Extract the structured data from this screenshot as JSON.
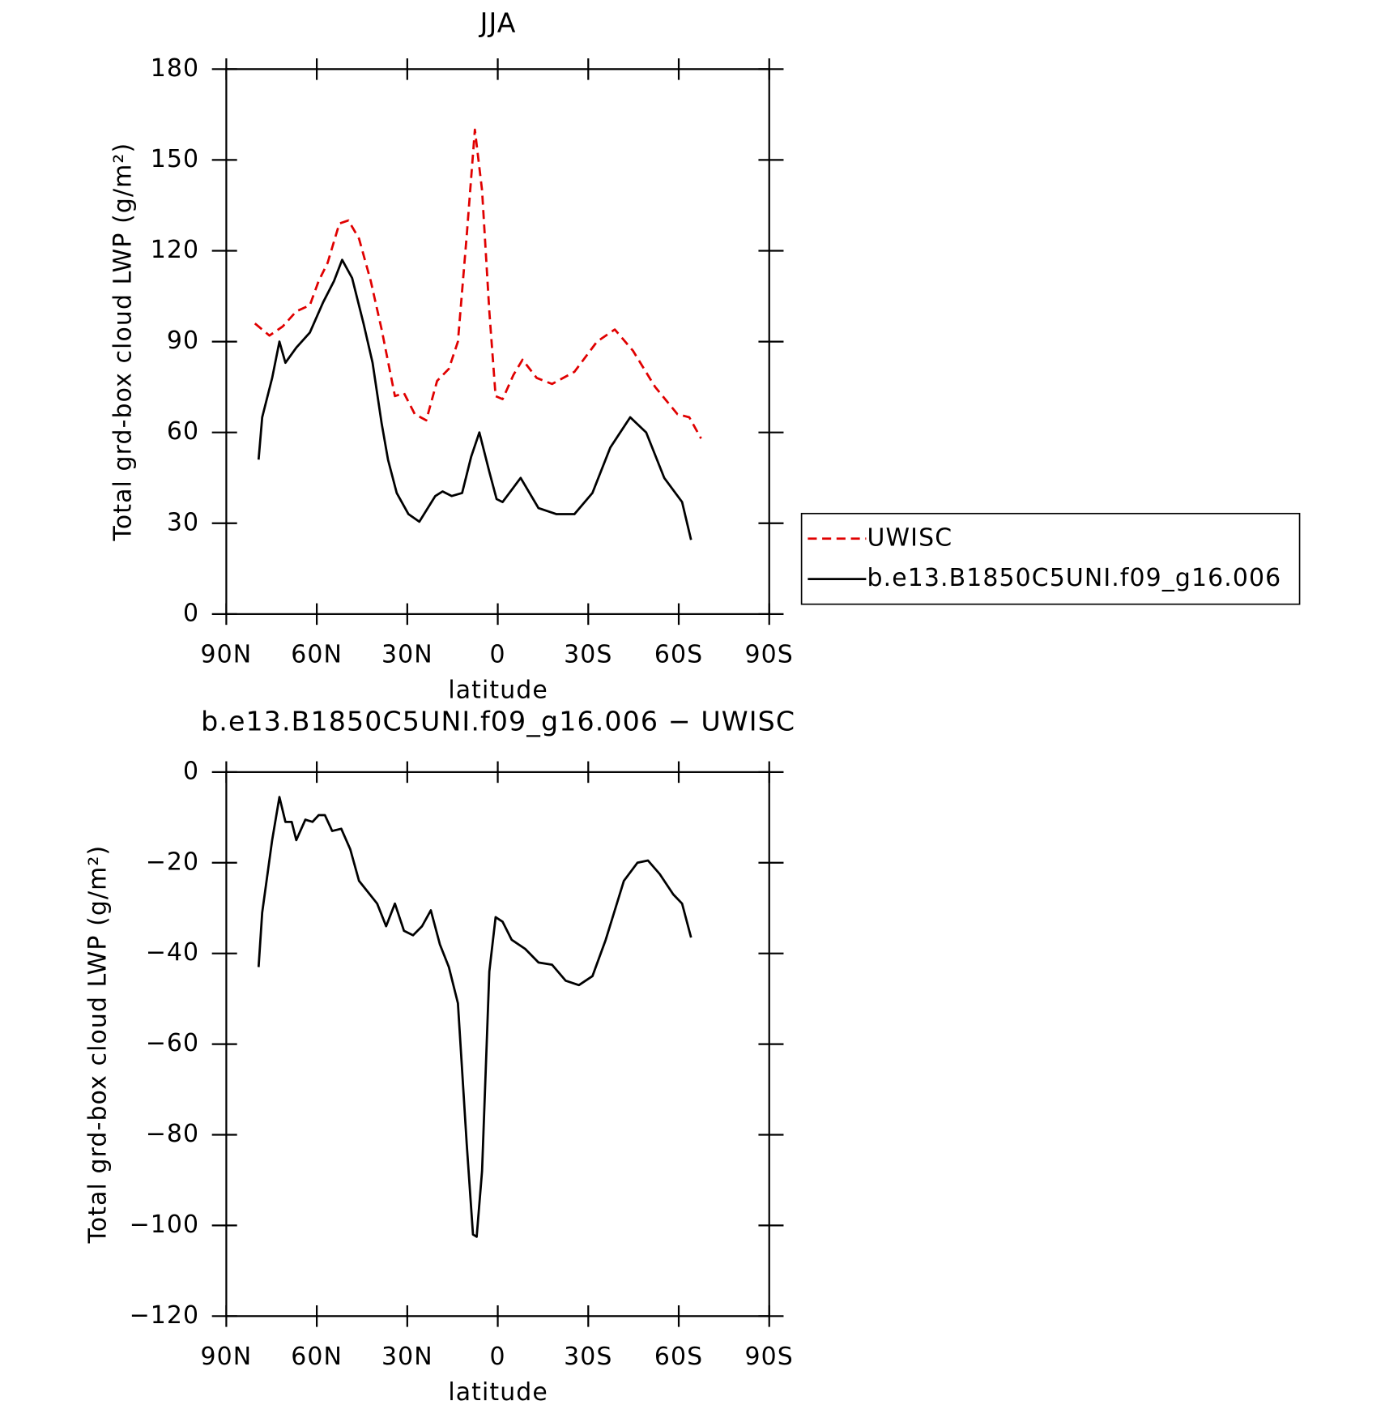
{
  "chart_data": [
    {
      "type": "line",
      "title": "JJA",
      "xlabel": "latitude",
      "ylabel": "Total grd-box cloud LWP (g/m²)",
      "xlim": [
        90,
        -90
      ],
      "ylim": [
        0,
        180
      ],
      "xticks": [
        {
          "value": 90,
          "label": "90N"
        },
        {
          "value": 60,
          "label": "60N"
        },
        {
          "value": 30,
          "label": "30N"
        },
        0,
        {
          "value": -30,
          "label": "30S"
        },
        {
          "value": -60,
          "label": "60S"
        },
        {
          "value": -90,
          "label": "90S"
        }
      ],
      "yticks": [
        0,
        30,
        60,
        90,
        120,
        150,
        180
      ],
      "legend": "right",
      "series": [
        {
          "name": "UWISC",
          "color": "#e00000",
          "dash": true,
          "x": [
            80.5,
            75.7,
            71.3,
            66.8,
            62.3,
            59.4,
            56.4,
            52.5,
            49.5,
            46.0,
            42.1,
            38.5,
            34.1,
            31.1,
            27.5,
            23.7,
            20.1,
            16.2,
            13.2,
            10.3,
            7.6,
            5.2,
            2.8,
            0.7,
            -1.6,
            -5.2,
            -8.2,
            -12.9,
            -18.0,
            -25.4,
            -32.9,
            -38.8,
            -44.8,
            -52.2,
            -59.6,
            -63.5,
            -67.4
          ],
          "values": [
            96,
            92,
            95,
            100,
            102,
            110,
            116,
            129,
            130,
            124,
            110,
            94,
            72,
            73,
            66,
            64,
            77,
            81,
            90,
            125,
            160,
            140,
            100,
            72,
            71,
            79,
            84,
            78,
            76,
            80,
            90,
            94,
            87,
            75,
            66,
            65,
            58
          ]
        },
        {
          "name": "b.e13.B1850C5UNI.f09_g16.006",
          "color": "#000000",
          "dash": false,
          "x": [
            79.3,
            78.1,
            74.8,
            72.4,
            70.4,
            66.8,
            62.3,
            57.9,
            54.3,
            51.6,
            48.3,
            44.5,
            41.5,
            38.5,
            36.4,
            33.5,
            29.6,
            26.0,
            20.7,
            18.3,
            15.3,
            11.8,
            8.8,
            6.1,
            2.8,
            0.4,
            -1.6,
            -7.6,
            -13.5,
            -19.5,
            -25.4,
            -31.4,
            -37.3,
            -43.9,
            -49.2,
            -55.2,
            -61.1,
            -64.1
          ],
          "values": [
            51,
            65,
            78,
            90,
            83,
            88,
            93,
            103,
            110,
            117,
            111,
            96,
            83,
            63,
            51,
            40,
            33,
            30.5,
            39,
            40.5,
            39,
            40,
            52,
            60,
            47,
            38,
            37,
            45,
            35,
            33,
            33,
            40,
            55,
            65,
            60,
            45,
            37,
            24.5
          ]
        }
      ]
    },
    {
      "type": "line",
      "title": "b.e13.B1850C5UNI.f09_g16.006 − UWISC",
      "xlabel": "latitude",
      "ylabel": "Total grd-box cloud LWP (g/m²)",
      "xlim": [
        90,
        -90
      ],
      "ylim": [
        -120,
        0
      ],
      "xticks": [
        {
          "value": 90,
          "label": "90N"
        },
        {
          "value": 60,
          "label": "60N"
        },
        {
          "value": 30,
          "label": "30N"
        },
        0,
        {
          "value": -30,
          "label": "30S"
        },
        {
          "value": -60,
          "label": "60S"
        },
        {
          "value": -90,
          "label": "90S"
        }
      ],
      "yticks": [
        {
          "value": -120,
          "label": "−120"
        },
        {
          "value": -100,
          "label": "−100"
        },
        {
          "value": -80,
          "label": "−80"
        },
        {
          "value": -60,
          "label": "−60"
        },
        {
          "value": -40,
          "label": "−40"
        },
        {
          "value": -20,
          "label": "−20"
        },
        0
      ],
      "series": [
        {
          "color": "#000000",
          "dash": false,
          "x": [
            79.3,
            78.1,
            74.8,
            72.4,
            70.4,
            68.3,
            66.8,
            63.8,
            61.4,
            59.4,
            57.3,
            54.9,
            51.9,
            48.9,
            46.0,
            43.0,
            40.0,
            37.0,
            34.1,
            31.1,
            28.1,
            25.1,
            22.2,
            19.2,
            16.2,
            13.2,
            10.3,
            8.2,
            7.0,
            5.2,
            2.8,
            0.7,
            -1.6,
            -4.6,
            -9.1,
            -13.5,
            -18.0,
            -22.5,
            -26.9,
            -31.4,
            -35.8,
            -41.8,
            -46.3,
            -49.8,
            -53.7,
            -58.2,
            -61.1,
            -64.1
          ],
          "values": [
            -43,
            -31,
            -15,
            -5.5,
            -11,
            -11,
            -15,
            -10.5,
            -11,
            -9.5,
            -9.5,
            -13,
            -12.5,
            -17,
            -24,
            -26.5,
            -29,
            -34,
            -29,
            -35,
            -36,
            -34,
            -30.5,
            -38,
            -43,
            -51,
            -82,
            -102,
            -102.5,
            -88,
            -44,
            -32,
            -33,
            -37,
            -39,
            -42,
            -42.5,
            -46,
            -47,
            -45,
            -37,
            -24,
            -20,
            -19.5,
            -22.5,
            -27,
            -29,
            -36.5
          ]
        }
      ]
    }
  ]
}
